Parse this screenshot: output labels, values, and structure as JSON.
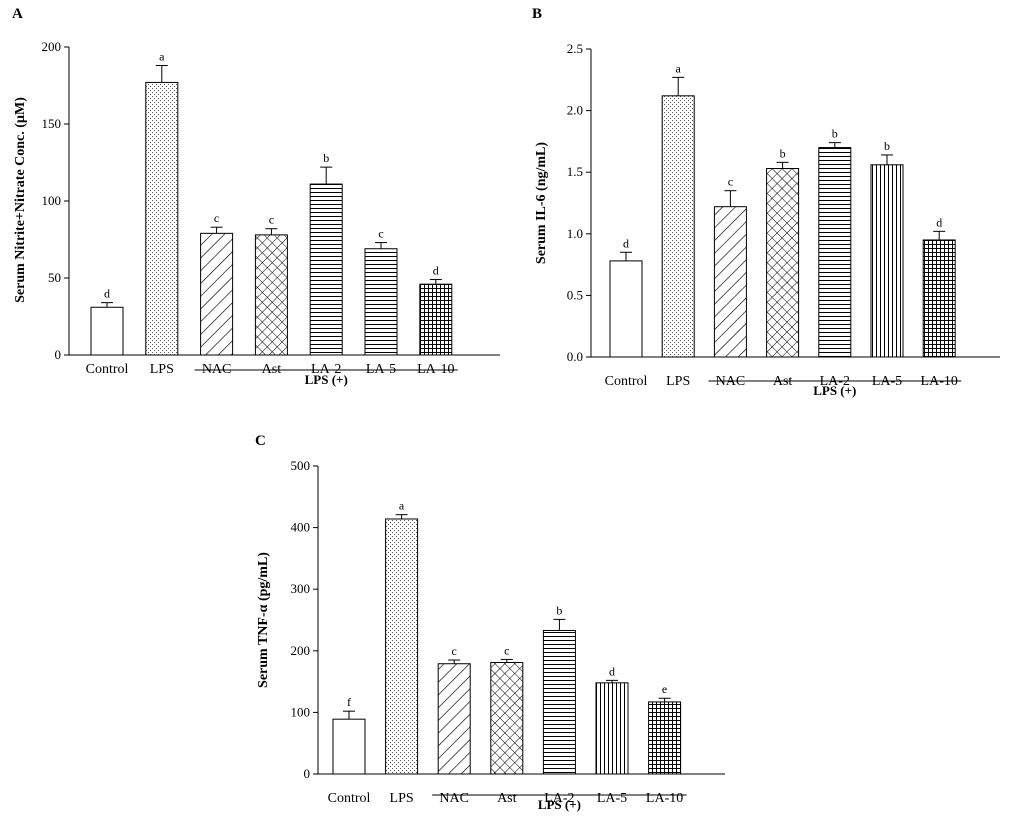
{
  "chart_data": [
    {
      "type": "bar",
      "panel": "A",
      "ylabel": "Serum Nitrite+Nitrate Conc. (µM)",
      "ylim": [
        0,
        200
      ],
      "yticks": [
        0,
        50,
        100,
        150,
        200
      ],
      "categories": [
        "Control",
        "LPS",
        "NAC",
        "Ast",
        "LA-2",
        "LA-5",
        "LA-10"
      ],
      "values": [
        31,
        177,
        79,
        78,
        111,
        69,
        46
      ],
      "errors": [
        3,
        11,
        4,
        4,
        11,
        4,
        3
      ],
      "significance": [
        "d",
        "a",
        "c",
        "c",
        "b",
        "c",
        "d"
      ],
      "patterns": [
        "none",
        "dots",
        "diag",
        "cross",
        "hlines",
        "hlines",
        "grid"
      ],
      "group_label": "LPS (+)"
    },
    {
      "type": "bar",
      "panel": "B",
      "ylabel": "Serum IL-6 (ng/mL)",
      "ylim": [
        0,
        2.5
      ],
      "yticks": [
        "0.0",
        "0.5",
        "1.0",
        "1.5",
        "2.0",
        "2.5"
      ],
      "categories": [
        "Control",
        "LPS",
        "NAC",
        "Ast",
        "LA-2",
        "LA-5",
        "LA-10"
      ],
      "values": [
        0.78,
        2.12,
        1.22,
        1.53,
        1.7,
        1.56,
        0.95
      ],
      "errors": [
        0.07,
        0.15,
        0.13,
        0.05,
        0.04,
        0.08,
        0.07
      ],
      "significance": [
        "d",
        "a",
        "c",
        "b",
        "b",
        "b",
        "d"
      ],
      "patterns": [
        "none",
        "dots",
        "diag",
        "cross",
        "hlines",
        "vlines",
        "grid"
      ],
      "group_label": "LPS (+)"
    },
    {
      "type": "bar",
      "panel": "C",
      "ylabel": "Serum TNF-α (pg/mL)",
      "ylim": [
        0,
        500
      ],
      "yticks": [
        0,
        100,
        200,
        300,
        400,
        500
      ],
      "categories": [
        "Control",
        "LPS",
        "NAC",
        "Ast",
        "LA-2",
        "LA-5",
        "LA-10"
      ],
      "values": [
        89,
        414,
        179,
        181,
        233,
        148,
        117
      ],
      "errors": [
        13,
        7,
        6,
        5,
        18,
        4,
        6
      ],
      "significance": [
        "f",
        "a",
        "c",
        "c",
        "b",
        "d",
        "e"
      ],
      "patterns": [
        "none",
        "dots",
        "diag",
        "cross",
        "hlines",
        "vlines",
        "grid"
      ],
      "group_label": "LPS (+)"
    }
  ]
}
